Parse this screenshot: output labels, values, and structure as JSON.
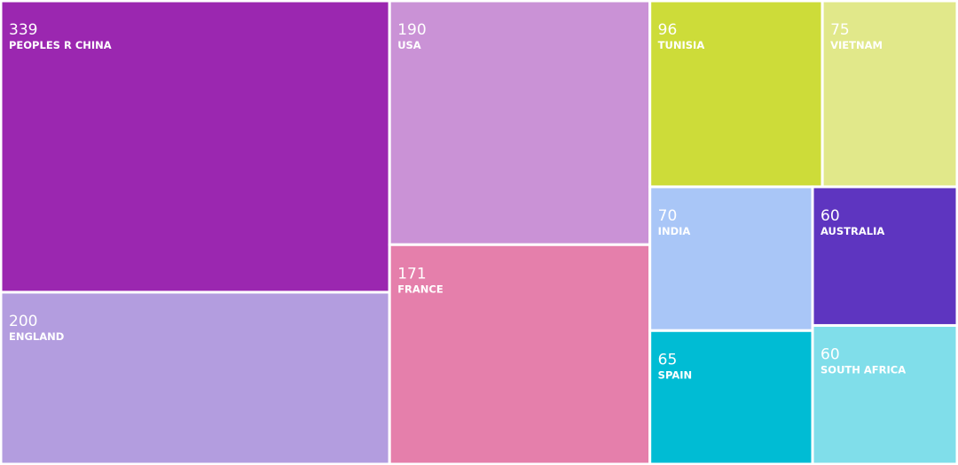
{
  "chart_data": {
    "type": "treemap",
    "categories": [
      "PEOPLES R CHINA",
      "ENGLAND",
      "USA",
      "FRANCE",
      "TUNISIA",
      "VIETNAM",
      "INDIA",
      "SPAIN",
      "AUSTRALIA",
      "SOUTH AFRICA"
    ],
    "values": [
      339,
      200,
      190,
      171,
      96,
      75,
      70,
      65,
      60,
      60
    ],
    "colors": [
      "#9b27b0",
      "#b39ddf",
      "#ca92d6",
      "#e57fab",
      "#cddc39",
      "#e1e88a",
      "#a9c6f7",
      "#00bcd4",
      "#5e35c0",
      "#80deea"
    ]
  }
}
